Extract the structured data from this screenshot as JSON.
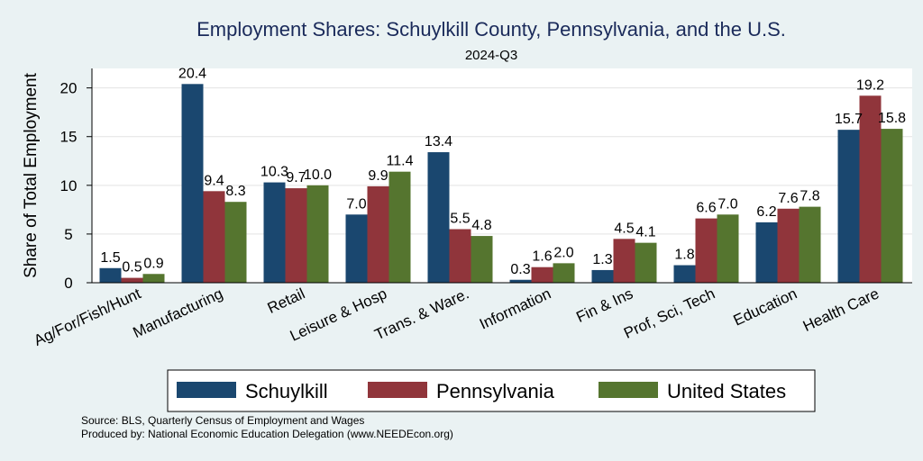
{
  "chart_data": {
    "type": "bar",
    "title": "Employment Shares: Schuylkill County, Pennsylvania, and the U.S.",
    "subtitle": "2024-Q3",
    "ylabel": "Share of Total Employment",
    "xlabel": "",
    "ylim": [
      0,
      22
    ],
    "yticks": [
      0,
      5,
      10,
      15,
      20
    ],
    "grid": "horizontal",
    "legend_position": "bottom",
    "categories": [
      "Ag/For/Fish/Hunt",
      "Manufacturing",
      "Retail",
      "Leisure & Hosp",
      "Trans. & Ware.",
      "Information",
      "Fin & Ins",
      "Prof, Sci, Tech",
      "Education",
      "Health Care"
    ],
    "series": [
      {
        "name": "Schuylkill",
        "color": "#1a476f",
        "values": [
          1.5,
          20.4,
          10.3,
          7.0,
          13.4,
          0.3,
          1.3,
          1.8,
          6.2,
          15.7
        ],
        "labels": [
          "1.5",
          "20.4",
          "10.3",
          "7.0",
          "13.4",
          "0.3",
          "1.3",
          "1.8",
          "6.2",
          "15.7"
        ]
      },
      {
        "name": "Pennsylvania",
        "color": "#90353b",
        "values": [
          0.5,
          9.4,
          9.7,
          9.9,
          5.5,
          1.6,
          4.5,
          6.6,
          7.6,
          19.2
        ],
        "labels": [
          "0.5",
          "9.4",
          "9.7",
          "9.9",
          "5.5",
          "1.6",
          "4.5",
          "6.6",
          "7.6",
          "19.2"
        ]
      },
      {
        "name": "United States",
        "color": "#55752f",
        "values": [
          0.9,
          8.3,
          10.0,
          11.4,
          4.8,
          2.0,
          4.1,
          7.0,
          7.8,
          15.8
        ],
        "labels": [
          "0.9",
          "8.3",
          "10.0",
          "11.4",
          "4.8",
          "2.0",
          "4.1",
          "7.0",
          "7.8",
          "15.8"
        ]
      }
    ]
  },
  "notes": {
    "source": "Source: BLS, Quarterly Census of Employment and Wages",
    "produced_by": "Produced by: National Economic Education Delegation (www.NEEDEcon.org)"
  }
}
